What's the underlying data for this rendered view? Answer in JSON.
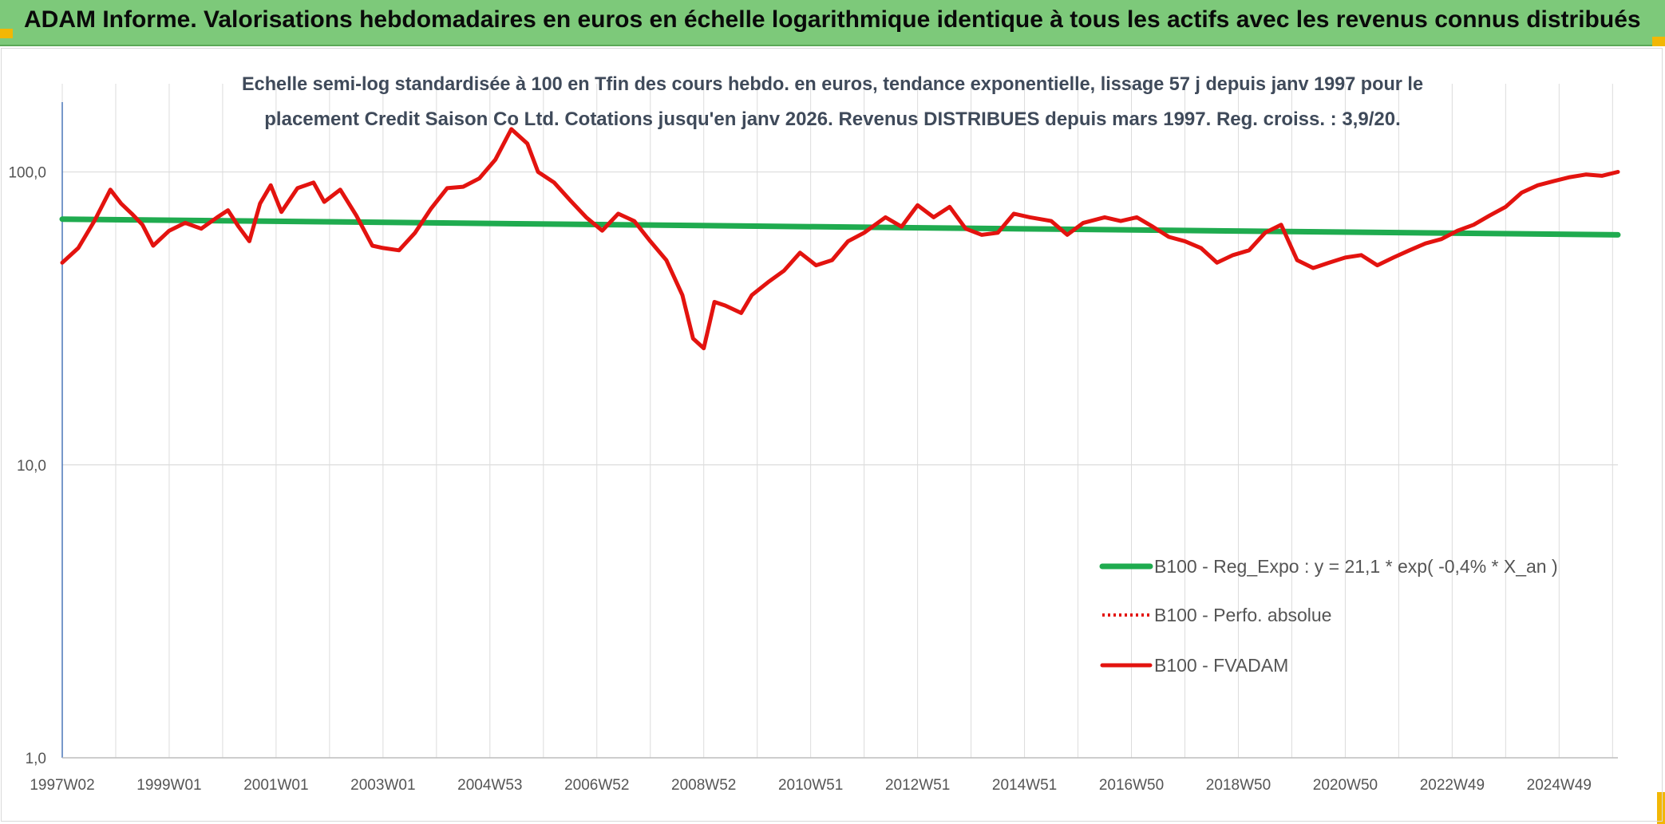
{
  "header": {
    "title": "ADAM Informe. Valorisations hebdomadaires en euros en échelle logarithmique identique à tous les actifs avec les revenus connus distribués"
  },
  "colors": {
    "banner": "#7dc97a",
    "accent_corner": "#f2b705",
    "trend": "#1fab4f",
    "fvadam": "#e3130f",
    "perf": "#e3130f",
    "grid": "#dcdcdc",
    "axis": "#4a76b8"
  },
  "chart_data": {
    "type": "line",
    "yscale": "log",
    "title_lines": [
      "Echelle semi-log standardisée à 100 en Tfin des cours hebdo. en euros, tendance exponentielle, lissage 57 j depuis janv 1997 pour le",
      "placement Credit Saison Co Ltd. Cotations jusqu'en janv 2026. Revenus DISTRIBUES depuis mars 1997. Reg. croiss. : 3,9/20."
    ],
    "ylim": [
      1,
      200
    ],
    "y_ticks": [
      {
        "value": 1,
        "label": "1,0"
      },
      {
        "value": 10,
        "label": "10,0"
      },
      {
        "value": 100,
        "label": "100,0"
      }
    ],
    "xlim": [
      1997.0,
      2026.1
    ],
    "x_ticks": [
      {
        "t": 1997.0,
        "label": "1997W02"
      },
      {
        "t": 1999.0,
        "label": "1999W01"
      },
      {
        "t": 2001.0,
        "label": "2001W01"
      },
      {
        "t": 2003.0,
        "label": "2003W01"
      },
      {
        "t": 2005.0,
        "label": "2004W53"
      },
      {
        "t": 2007.0,
        "label": "2006W52"
      },
      {
        "t": 2009.0,
        "label": "2008W52"
      },
      {
        "t": 2011.0,
        "label": "2010W51"
      },
      {
        "t": 2013.0,
        "label": "2012W51"
      },
      {
        "t": 2015.0,
        "label": "2014W51"
      },
      {
        "t": 2017.0,
        "label": "2016W50"
      },
      {
        "t": 2019.0,
        "label": "2018W50"
      },
      {
        "t": 2021.0,
        "label": "2020W50"
      },
      {
        "t": 2023.0,
        "label": "2022W49"
      },
      {
        "t": 2025.0,
        "label": "2024W49"
      }
    ],
    "legend": {
      "position": "lower-right",
      "entries": [
        {
          "key": "trend",
          "label": "B100 - Reg_Expo : y = 21,1 * exp( -0,4% *  X_an )",
          "style": "solid-thick"
        },
        {
          "key": "perf",
          "label": "B100 - Perfo. absolue",
          "style": "dotted"
        },
        {
          "key": "fvadam",
          "label": "B100 - FVADAM",
          "style": "solid"
        }
      ]
    },
    "series": [
      {
        "name": "B100 - Reg_Expo : y = 21,1 * exp( -0,4% *  X_an )",
        "key": "trend",
        "t": [
          1997.0,
          2026.1
        ],
        "values": [
          69,
          61
        ]
      },
      {
        "name": "B100 - Perfo. absolue",
        "key": "perf",
        "t": [],
        "values": []
      },
      {
        "name": "B100 - FVADAM",
        "key": "fvadam",
        "t": [
          1997.0,
          1997.3,
          1997.6,
          1997.9,
          1998.1,
          1998.3,
          1998.5,
          1998.7,
          1999.0,
          1999.3,
          1999.6,
          1999.9,
          2000.1,
          2000.3,
          2000.5,
          2000.7,
          2000.9,
          2001.1,
          2001.4,
          2001.7,
          2001.9,
          2002.2,
          2002.5,
          2002.8,
          2003.0,
          2003.3,
          2003.6,
          2003.9,
          2004.2,
          2004.5,
          2004.8,
          2005.1,
          2005.4,
          2005.7,
          2005.9,
          2006.2,
          2006.5,
          2006.8,
          2007.1,
          2007.4,
          2007.7,
          2008.0,
          2008.3,
          2008.6,
          2008.8,
          2009.0,
          2009.2,
          2009.4,
          2009.7,
          2009.9,
          2010.2,
          2010.5,
          2010.8,
          2011.1,
          2011.4,
          2011.7,
          2012.0,
          2012.4,
          2012.7,
          2013.0,
          2013.3,
          2013.6,
          2013.9,
          2014.2,
          2014.5,
          2014.8,
          2015.1,
          2015.5,
          2015.8,
          2016.1,
          2016.5,
          2016.8,
          2017.1,
          2017.4,
          2017.7,
          2018.0,
          2018.3,
          2018.6,
          2018.9,
          2019.2,
          2019.5,
          2019.8,
          2020.1,
          2020.4,
          2020.7,
          2021.0,
          2021.3,
          2021.6,
          2021.9,
          2022.2,
          2022.5,
          2022.8,
          2023.1,
          2023.4,
          2023.7,
          2024.0,
          2024.3,
          2024.6,
          2024.9,
          2025.2,
          2025.5,
          2025.8,
          2026.1
        ],
        "values": [
          49,
          55,
          68,
          87,
          78,
          72,
          66,
          56,
          63,
          67,
          64,
          70,
          74,
          65,
          58,
          78,
          90,
          73,
          88,
          92,
          79,
          87,
          71,
          56,
          55,
          54,
          62,
          75,
          88,
          89,
          95,
          110,
          140,
          125,
          100,
          92,
          80,
          70,
          63,
          72,
          68,
          58,
          50,
          38,
          27,
          25,
          36,
          35,
          33,
          38,
          42,
          46,
          53,
          48,
          50,
          58,
          62,
          70,
          65,
          77,
          70,
          76,
          64,
          61,
          62,
          72,
          70,
          68,
          61,
          67,
          70,
          68,
          70,
          65,
          60,
          58,
          55,
          49,
          52,
          54,
          62,
          66,
          50,
          47,
          49,
          51,
          52,
          48,
          51,
          54,
          57,
          59,
          63,
          66,
          71,
          76,
          85,
          90,
          93,
          96,
          98,
          97,
          100
        ]
      }
    ]
  }
}
